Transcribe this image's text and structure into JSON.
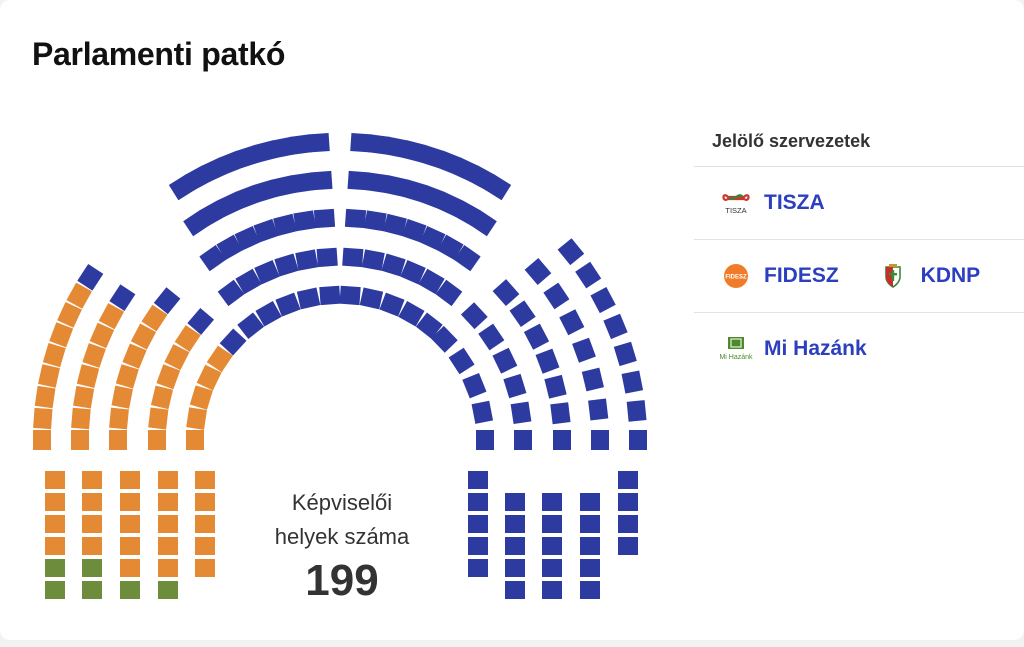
{
  "title": "Parlamenti patkó",
  "center": {
    "label_line1": "Képviselői",
    "label_line2": "helyek száma",
    "total": "199"
  },
  "legend": {
    "header": "Jelölő szervezetek",
    "rows": [
      [
        {
          "name": "TISZA",
          "logo_text": "TISZA",
          "logo_icon": "tisza-infinity-logo",
          "color": "#2d3aa0"
        }
      ],
      [
        {
          "name": "FIDESZ",
          "logo_text": "FIDESZ",
          "logo_icon": "fidesz-logo",
          "color": "#e58a34"
        },
        {
          "name": "KDNP",
          "logo_icon": "kdnp-shield-logo",
          "color": "#2d3aa0"
        }
      ],
      [
        {
          "name": "Mi Hazánk",
          "logo_text": "Mi Hazánk",
          "logo_icon": "mi-hazank-flag-logo",
          "color": "#6d8c3c"
        }
      ]
    ]
  },
  "colors": {
    "tisza": "#2d3aa0",
    "fidesz": "#e58a34",
    "mihazank": "#6d8c3c",
    "party_link": "#2b3fbf"
  },
  "seats": {
    "total": 199,
    "left_block": {
      "fidesz": 21,
      "mihazank": 6
    },
    "left_arc": {
      "fidesz": 34,
      "tisza": 5
    },
    "top_left_arc": 38,
    "top_right_arc": 38,
    "right_arc": 33,
    "right_block": 24
  }
}
